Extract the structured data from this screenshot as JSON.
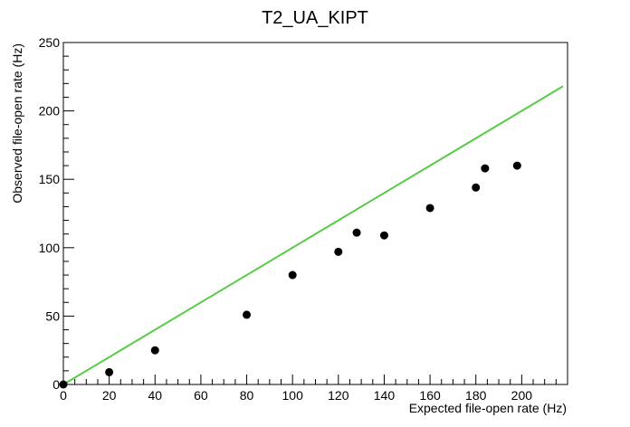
{
  "chart_data": {
    "type": "scatter",
    "title": "T2_UA_KIPT",
    "xlabel": "Expected file-open rate (Hz)",
    "ylabel": "Observed file-open rate (Hz)",
    "xlim": [
      0,
      220
    ],
    "ylim": [
      0,
      250
    ],
    "x_ticks": [
      0,
      20,
      40,
      60,
      80,
      100,
      120,
      140,
      160,
      180,
      200
    ],
    "y_ticks": [
      0,
      50,
      100,
      150,
      200,
      250
    ],
    "grid": false,
    "legend": "none",
    "points": [
      {
        "x": 0,
        "y": 0
      },
      {
        "x": 20,
        "y": 9
      },
      {
        "x": 40,
        "y": 25
      },
      {
        "x": 80,
        "y": 51
      },
      {
        "x": 100,
        "y": 80
      },
      {
        "x": 120,
        "y": 97
      },
      {
        "x": 128,
        "y": 111
      },
      {
        "x": 140,
        "y": 109
      },
      {
        "x": 160,
        "y": 129
      },
      {
        "x": 180,
        "y": 144
      },
      {
        "x": 184,
        "y": 158
      },
      {
        "x": 198,
        "y": 160
      }
    ],
    "reference_line": {
      "x": [
        0,
        218
      ],
      "y": [
        0,
        218
      ],
      "color": "#55cc44"
    },
    "point_color": "#000000"
  }
}
